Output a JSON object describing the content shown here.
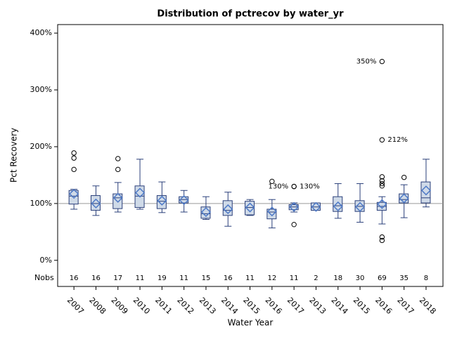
{
  "chart_data": {
    "type": "box",
    "title": "Distribution of pctrecov by water_yr",
    "xlabel": "Water Year",
    "ylabel": "Pct Recovery",
    "nobs_label": "Nobs",
    "categories": [
      "2007",
      "2008",
      "2009",
      "2010",
      "2011",
      "2012",
      "2013",
      "2014",
      "2015",
      "2016",
      "2017",
      "2013",
      "2014",
      "2015",
      "2016",
      "2017",
      "2018"
    ],
    "ylim": [
      -46,
      415
    ],
    "yticks": [
      {
        "value": 0,
        "label": "0%"
      },
      {
        "value": 100,
        "label": "100%"
      },
      {
        "value": 200,
        "label": "200%"
      },
      {
        "value": 300,
        "label": "300%"
      },
      {
        "value": 400,
        "label": "400%"
      }
    ],
    "refline": 100,
    "box_color": "#cfdae8",
    "line_color": "#2a3f7a",
    "mean_color": "#4e7ac7",
    "boxes": [
      {
        "low": 90,
        "q1": 99,
        "median": 113,
        "q3": 123,
        "high": 125,
        "mean": 117,
        "outliers": [
          189,
          180,
          160
        ],
        "outlier_labels": [
          null,
          null,
          null
        ],
        "nobs": 16
      },
      {
        "low": 79,
        "q1": 88,
        "median": 100,
        "q3": 114,
        "high": 131,
        "mean": 100,
        "outliers": [],
        "outlier_labels": [],
        "nobs": 16
      },
      {
        "low": 85,
        "q1": 91,
        "median": 110,
        "q3": 117,
        "high": 137,
        "mean": 110,
        "outliers": [
          179,
          160
        ],
        "outlier_labels": [
          null,
          null
        ],
        "nobs": 17
      },
      {
        "low": 90,
        "q1": 93,
        "median": 113,
        "q3": 131,
        "high": 178,
        "mean": 119,
        "outliers": [],
        "outlier_labels": [],
        "nobs": 11
      },
      {
        "low": 84,
        "q1": 91,
        "median": 104,
        "q3": 114,
        "high": 138,
        "mean": 105,
        "outliers": [],
        "outlier_labels": [],
        "nobs": 19
      },
      {
        "low": 85,
        "q1": 101,
        "median": 107,
        "q3": 112,
        "high": 123,
        "mean": 106,
        "outliers": [],
        "outlier_labels": [],
        "nobs": 11
      },
      {
        "low": 72,
        "q1": 74,
        "median": 82,
        "q3": 94,
        "high": 112,
        "mean": 85,
        "outliers": [],
        "outlier_labels": [],
        "nobs": 15
      },
      {
        "low": 60,
        "q1": 79,
        "median": 88,
        "q3": 105,
        "high": 120,
        "mean": 90,
        "outliers": [],
        "outlier_labels": [],
        "nobs": 16
      },
      {
        "low": 79,
        "q1": 80,
        "median": 93,
        "q3": 104,
        "high": 107,
        "mean": 93,
        "outliers": [],
        "outlier_labels": [],
        "nobs": 11
      },
      {
        "low": 57,
        "q1": 73,
        "median": 85,
        "q3": 90,
        "high": 107,
        "mean": 86,
        "outliers": [
          139
        ],
        "outlier_labels": [
          null
        ],
        "nobs": 12
      },
      {
        "low": 85,
        "q1": 89,
        "median": 94,
        "q3": 98,
        "high": 101,
        "mean": 94,
        "outliers": [
          130,
          130,
          63
        ],
        "outlier_labels": [
          "130%",
          "130%",
          null
        ],
        "nobs": 11
      },
      {
        "low": 88,
        "q1": 88,
        "median": 94,
        "q3": 101,
        "high": 101,
        "mean": 94,
        "outliers": [],
        "outlier_labels": [],
        "nobs": 2
      },
      {
        "low": 74,
        "q1": 86,
        "median": 96,
        "q3": 112,
        "high": 135,
        "mean": 95,
        "outliers": [],
        "outlier_labels": [],
        "nobs": 18
      },
      {
        "low": 67,
        "q1": 86,
        "median": 95,
        "q3": 105,
        "high": 135,
        "mean": 94,
        "outliers": [],
        "outlier_labels": [],
        "nobs": 30
      },
      {
        "low": 64,
        "q1": 88,
        "median": 95,
        "q3": 102,
        "high": 112,
        "mean": 99,
        "outliers": [
          350,
          212,
          147,
          140,
          135,
          131,
          41,
          35
        ],
        "outlier_labels": [
          "350%",
          "212%",
          null,
          null,
          null,
          null,
          null,
          null
        ],
        "nobs": 69
      },
      {
        "low": 75,
        "q1": 101,
        "median": 107,
        "q3": 117,
        "high": 133,
        "mean": 109,
        "outliers": [
          146
        ],
        "outlier_labels": [
          null
        ],
        "nobs": 35
      },
      {
        "low": 94,
        "q1": 101,
        "median": 110,
        "q3": 138,
        "high": 178,
        "mean": 123,
        "outliers": [],
        "outlier_labels": [],
        "nobs": 8
      }
    ]
  }
}
